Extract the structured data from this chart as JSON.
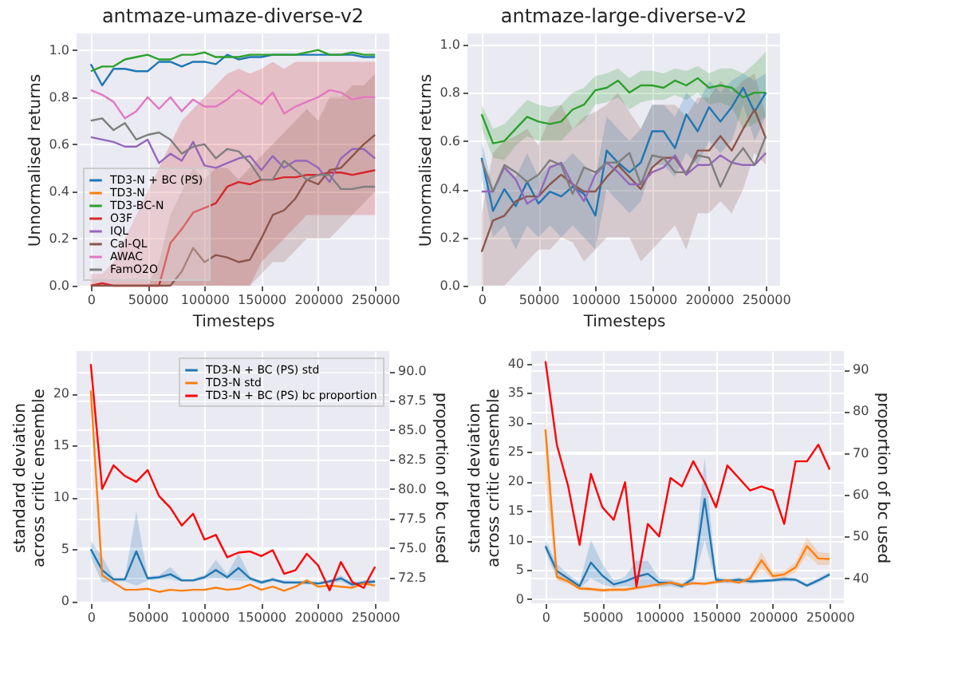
{
  "chart_data": [
    {
      "type": "line",
      "title": "antmaze-umaze-diverse-v2",
      "xlabel": "Timesteps",
      "ylabel": "Unnormalised returns",
      "grid": true,
      "legend": "bottom left",
      "x": [
        0,
        10000,
        20000,
        30000,
        40000,
        50000,
        60000,
        70000,
        80000,
        90000,
        100000,
        110000,
        120000,
        130000,
        140000,
        150000,
        160000,
        170000,
        180000,
        190000,
        200000,
        210000,
        220000,
        230000,
        240000,
        250000
      ],
      "xlim": [
        -12500,
        262500
      ],
      "xticks": [
        0,
        50000,
        100000,
        150000,
        200000,
        250000
      ],
      "ylim": [
        0,
        1.07
      ],
      "yticks": [
        {
          "value": 0,
          "label": "0.0"
        },
        {
          "value": 0.2,
          "label": "0.2"
        },
        {
          "value": 0.4,
          "label": "0.4"
        },
        {
          "value": 0.6,
          "label": "0.6"
        },
        {
          "value": 0.8,
          "label": "0.8"
        },
        {
          "value": 1,
          "label": "1.0"
        }
      ],
      "series": [
        {
          "name": "TD3-N + BC (PS)",
          "color": "#1f77b4",
          "values": [
            0.94,
            0.85,
            0.92,
            0.92,
            0.91,
            0.91,
            0.95,
            0.95,
            0.93,
            0.95,
            0.95,
            0.94,
            0.98,
            0.96,
            0.97,
            0.97,
            0.98,
            0.98,
            0.98,
            0.98,
            0.98,
            0.98,
            0.98,
            0.98,
            0.97,
            0.97
          ]
        },
        {
          "name": "TD3-N",
          "color": "#ff7f0e",
          "values": [
            null,
            null,
            null,
            null,
            null,
            null,
            null,
            null,
            null,
            null,
            null,
            null,
            null,
            null,
            null,
            null,
            null,
            null,
            null,
            null,
            null,
            null,
            null,
            null,
            null,
            null
          ]
        },
        {
          "name": "TD3-BC-N",
          "color": "#2ca02c",
          "values": [
            0.91,
            0.93,
            0.93,
            0.96,
            0.97,
            0.98,
            0.96,
            0.96,
            0.98,
            0.98,
            0.99,
            0.97,
            0.97,
            0.97,
            0.98,
            0.98,
            0.98,
            0.98,
            0.98,
            0.99,
            1.0,
            0.98,
            0.98,
            0.99,
            0.98,
            0.98
          ]
        },
        {
          "name": "O3F",
          "color": "#d62728",
          "values": [
            0.0,
            0.01,
            0.0,
            0.0,
            0.0,
            0.0,
            0.0,
            0.18,
            0.24,
            0.31,
            0.33,
            0.35,
            0.42,
            0.44,
            0.43,
            0.45,
            0.45,
            0.46,
            0.46,
            0.47,
            0.47,
            0.48,
            0.48,
            0.47,
            0.48,
            0.49
          ],
          "lower": [
            0,
            0,
            0,
            0,
            0,
            0,
            0,
            0,
            0,
            0,
            0,
            0,
            0,
            0,
            0,
            0.1,
            0.15,
            0.2,
            0.25,
            0.3,
            0.3,
            0.3,
            0.3,
            0.3,
            0.3,
            0.3
          ],
          "upper": [
            0.05,
            0.05,
            0.1,
            0.2,
            0.3,
            0.4,
            0.5,
            0.6,
            0.7,
            0.75,
            0.8,
            0.85,
            0.9,
            0.92,
            0.9,
            0.92,
            0.95,
            0.92,
            0.95,
            0.95,
            0.95,
            0.95,
            0.95,
            0.95,
            0.95,
            0.95
          ]
        },
        {
          "name": "IQL",
          "color": "#9467bd",
          "values": [
            0.63,
            0.62,
            0.61,
            0.59,
            0.59,
            0.62,
            0.52,
            0.56,
            0.53,
            0.61,
            0.51,
            0.5,
            0.52,
            0.54,
            0.55,
            0.49,
            0.55,
            0.5,
            0.53,
            0.53,
            0.5,
            0.44,
            0.54,
            0.58,
            0.58,
            0.54
          ]
        },
        {
          "name": "Cal-QL",
          "color": "#8c564b",
          "values": [
            0.0,
            0.0,
            0.0,
            0.0,
            0.0,
            0.0,
            0.0,
            0.0,
            0.06,
            0.16,
            0.1,
            0.13,
            0.12,
            0.1,
            0.11,
            0.2,
            0.3,
            0.32,
            0.37,
            0.45,
            0.43,
            0.49,
            0.5,
            0.55,
            0.6,
            0.64
          ],
          "lower": [
            0,
            0,
            0,
            0,
            0,
            0,
            0,
            0,
            0,
            0,
            0,
            0,
            0,
            0,
            0,
            0.05,
            0.1,
            0.1,
            0.15,
            0.2,
            0.2,
            0.2,
            0.25,
            0.3,
            0.35,
            0.4
          ],
          "upper": [
            0,
            0,
            0,
            0,
            0,
            0,
            0.1,
            0.3,
            0.4,
            0.5,
            0.45,
            0.5,
            0.5,
            0.45,
            0.5,
            0.55,
            0.6,
            0.65,
            0.7,
            0.75,
            0.7,
            0.8,
            0.8,
            0.85,
            0.85,
            0.9
          ]
        },
        {
          "name": "AWAC",
          "color": "#e377c2",
          "values": [
            0.83,
            0.81,
            0.78,
            0.71,
            0.74,
            0.8,
            0.75,
            0.8,
            0.74,
            0.79,
            0.76,
            0.76,
            0.79,
            0.83,
            0.8,
            0.77,
            0.82,
            0.73,
            0.76,
            0.78,
            0.8,
            0.83,
            0.82,
            0.79,
            0.8,
            0.8
          ]
        },
        {
          "name": "FamO2O",
          "color": "#7f7f7f",
          "values": [
            0.7,
            0.71,
            0.66,
            0.69,
            0.62,
            0.64,
            0.65,
            0.62,
            0.56,
            0.59,
            0.6,
            0.54,
            0.58,
            0.57,
            0.52,
            0.45,
            0.45,
            0.53,
            0.49,
            0.45,
            0.47,
            0.47,
            0.41,
            0.41,
            0.42,
            0.42
          ]
        }
      ]
    },
    {
      "type": "line",
      "title": "antmaze-large-diverse-v2",
      "xlabel": "Timesteps",
      "ylabel": "Unnormalised returns",
      "grid": true,
      "x": [
        0,
        10000,
        20000,
        30000,
        40000,
        50000,
        60000,
        70000,
        80000,
        90000,
        100000,
        110000,
        120000,
        130000,
        140000,
        150000,
        160000,
        170000,
        180000,
        190000,
        200000,
        210000,
        220000,
        230000,
        240000,
        250000
      ],
      "xlim": [
        -12500,
        262500
      ],
      "xticks": [
        0,
        50000,
        100000,
        150000,
        200000,
        250000
      ],
      "ylim": [
        0,
        1.045
      ],
      "yticks": [
        {
          "value": 0,
          "label": "0.0"
        },
        {
          "value": 0.2,
          "label": "0.2"
        },
        {
          "value": 0.4,
          "label": "0.4"
        },
        {
          "value": 0.6,
          "label": "0.6"
        },
        {
          "value": 0.8,
          "label": "0.8"
        },
        {
          "value": 1,
          "label": "1.0"
        }
      ],
      "series": [
        {
          "color": "#2ca02c",
          "values": [
            0.71,
            0.59,
            0.6,
            0.65,
            0.7,
            0.68,
            0.67,
            0.68,
            0.73,
            0.75,
            0.81,
            0.82,
            0.85,
            0.8,
            0.83,
            0.83,
            0.82,
            0.85,
            0.83,
            0.86,
            0.82,
            0.83,
            0.82,
            0.78,
            0.8,
            0.8
          ],
          "lower": [
            0.65,
            0.53,
            0.52,
            0.58,
            0.62,
            0.6,
            0.6,
            0.6,
            0.65,
            0.68,
            0.75,
            0.76,
            0.78,
            0.73,
            0.76,
            0.77,
            0.77,
            0.79,
            0.77,
            0.8,
            0.75,
            0.76,
            0.74,
            0.65,
            0.67,
            0.7
          ],
          "upper": [
            0.75,
            0.65,
            0.67,
            0.72,
            0.77,
            0.75,
            0.74,
            0.75,
            0.8,
            0.82,
            0.87,
            0.88,
            0.9,
            0.86,
            0.89,
            0.89,
            0.88,
            0.9,
            0.89,
            0.91,
            0.88,
            0.9,
            0.9,
            0.88,
            0.92,
            0.97
          ]
        },
        {
          "color": "#1f77b4",
          "values": [
            0.53,
            0.31,
            0.4,
            0.33,
            0.43,
            0.34,
            0.39,
            0.37,
            0.41,
            0.38,
            0.29,
            0.56,
            0.51,
            0.47,
            0.51,
            0.64,
            0.64,
            0.57,
            0.71,
            0.64,
            0.74,
            0.68,
            0.74,
            0.82,
            0.72,
            0.8
          ],
          "lower": [
            0.45,
            0.2,
            0.25,
            0.15,
            0.25,
            0.2,
            0.25,
            0.2,
            0.25,
            0.2,
            0.15,
            0.4,
            0.35,
            0.3,
            0.35,
            0.5,
            0.5,
            0.45,
            0.55,
            0.5,
            0.6,
            0.55,
            0.6,
            0.75,
            0.6,
            0.7
          ],
          "upper": [
            0.6,
            0.4,
            0.5,
            0.45,
            0.55,
            0.45,
            0.5,
            0.5,
            0.55,
            0.5,
            0.45,
            0.7,
            0.65,
            0.6,
            0.65,
            0.75,
            0.75,
            0.7,
            0.8,
            0.75,
            0.85,
            0.8,
            0.85,
            0.88,
            0.85,
            0.88
          ]
        },
        {
          "color": "#8c564b",
          "values": [
            0.14,
            0.27,
            0.29,
            0.35,
            0.37,
            0.37,
            0.42,
            0.46,
            0.42,
            0.39,
            0.39,
            0.45,
            0.5,
            0.45,
            0.4,
            0.49,
            0.53,
            0.53,
            0.46,
            0.56,
            0.56,
            0.62,
            0.56,
            0.65,
            0.73,
            0.61
          ],
          "lower": [
            0,
            0,
            0,
            0.05,
            0.1,
            0.15,
            0.15,
            0.2,
            0.18,
            0.1,
            0.15,
            0.2,
            0.2,
            0.2,
            0.1,
            0.15,
            0.2,
            0.25,
            0.15,
            0.3,
            0.3,
            0.35,
            0.3,
            0.4,
            0.55,
            0.5
          ],
          "upper": [
            0.3,
            0.55,
            0.6,
            0.62,
            0.65,
            0.58,
            0.7,
            0.75,
            0.65,
            0.7,
            0.72,
            0.75,
            0.8,
            0.72,
            0.65,
            0.75,
            0.75,
            0.75,
            0.7,
            0.78,
            0.78,
            0.85,
            0.8,
            0.85,
            0.88,
            0.7
          ]
        },
        {
          "color": "#9467bd",
          "values": [
            0.39,
            0.39,
            0.49,
            0.44,
            0.34,
            0.37,
            0.49,
            0.51,
            0.42,
            0.35,
            0.46,
            0.51,
            0.47,
            0.42,
            0.42,
            0.47,
            0.49,
            0.54,
            0.46,
            0.5,
            0.5,
            0.54,
            0.51,
            0.5,
            0.5,
            0.55
          ]
        },
        {
          "color": "#7f7f7f",
          "values": [
            0.52,
            0.39,
            0.5,
            0.47,
            0.43,
            0.46,
            0.52,
            0.5,
            0.38,
            0.49,
            0.47,
            0.51,
            0.51,
            0.55,
            0.42,
            0.54,
            0.53,
            0.47,
            0.47,
            0.54,
            0.53,
            0.41,
            0.51,
            0.57,
            0.5,
            0.62
          ]
        }
      ]
    },
    {
      "type": "line",
      "ylabel": "standard deviation across critic ensemble",
      "y2label": "proportion of bc used",
      "grid": true,
      "legend": "top right",
      "x": [
        0,
        10000,
        20000,
        30000,
        40000,
        50000,
        60000,
        70000,
        80000,
        90000,
        100000,
        110000,
        120000,
        130000,
        140000,
        150000,
        160000,
        170000,
        180000,
        190000,
        200000,
        210000,
        220000,
        230000,
        240000,
        250000
      ],
      "xlim": [
        -12500,
        262500
      ],
      "xticks": [
        0,
        50000,
        100000,
        150000,
        200000,
        250000
      ],
      "ylim": [
        -0.2,
        24.1
      ],
      "yticks": [
        0,
        5,
        10,
        15,
        20
      ],
      "y2lim": [
        70.3,
        91.7
      ],
      "y2ticks": [
        72.5,
        {
          "value": 75,
          "label": "75.0"
        },
        77.5,
        {
          "value": 80,
          "label": "80.0"
        },
        82.5,
        {
          "value": 85,
          "label": "85.0"
        },
        87.5,
        {
          "value": 90,
          "label": "90.0"
        }
      ],
      "series": [
        {
          "name": "TD3-N + BC (PS) std",
          "color": "#1f77b4",
          "values": [
            5.0,
            3.0,
            2.1,
            2.1,
            4.8,
            2.2,
            2.3,
            2.6,
            2.0,
            2.0,
            2.3,
            3.0,
            2.3,
            3.2,
            2.2,
            1.8,
            2.1,
            1.8,
            1.8,
            1.8,
            1.7,
            1.9,
            2.2,
            1.6,
            1.8,
            1.9
          ],
          "lower": [
            4.2,
            1.8,
            1.9,
            1.9,
            1.5,
            2.0,
            2.1,
            2.1,
            1.9,
            1.9,
            2.1,
            2.2,
            2.1,
            2.0,
            2.0,
            1.6,
            1.9,
            1.7,
            1.7,
            1.6,
            1.6,
            1.7,
            1.9,
            1.4,
            1.6,
            1.7
          ],
          "upper": [
            5.8,
            4.3,
            2.3,
            2.3,
            8.6,
            2.4,
            2.5,
            3.3,
            2.2,
            2.2,
            2.5,
            4.0,
            2.6,
            4.6,
            2.4,
            2.0,
            2.3,
            2.0,
            1.9,
            2.0,
            1.8,
            2.1,
            2.5,
            1.8,
            2.0,
            2.1
          ]
        },
        {
          "name": "TD3-N std",
          "color": "#ff7f0e",
          "values": [
            20.3,
            2.5,
            1.8,
            1.1,
            1.1,
            1.2,
            0.9,
            1.1,
            1.0,
            1.1,
            1.1,
            1.3,
            1.1,
            1.2,
            1.6,
            1.1,
            1.4,
            1.0,
            1.4,
            2.0,
            1.4,
            1.5,
            1.4,
            1.3,
            1.7,
            1.5
          ]
        },
        {
          "name": "TD3-N + BC (PS) bc proportion",
          "color": "#ff0000",
          "axis": "y2",
          "values": [
            90.6,
            80.0,
            82.0,
            81.1,
            80.6,
            81.6,
            79.4,
            78.4,
            76.9,
            77.9,
            75.7,
            76.1,
            74.2,
            74.6,
            74.7,
            74.3,
            74.8,
            72.8,
            73.1,
            74.5,
            73.5,
            71.4,
            73.8,
            72.1,
            71.6,
            73.4
          ]
        }
      ]
    },
    {
      "type": "line",
      "ylabel": "standard deviation across critic ensemble",
      "y2label": "proportion of bc used",
      "grid": true,
      "x": [
        0,
        10000,
        20000,
        30000,
        40000,
        50000,
        60000,
        70000,
        80000,
        90000,
        100000,
        110000,
        120000,
        130000,
        140000,
        150000,
        160000,
        170000,
        180000,
        190000,
        200000,
        210000,
        220000,
        230000,
        240000,
        250000
      ],
      "xlim": [
        -12500,
        262500
      ],
      "xticks": [
        0,
        50000,
        100000,
        150000,
        200000,
        250000
      ],
      "ylim": [
        -0.7,
        42.1
      ],
      "yticks": [
        0,
        5,
        10,
        15,
        20,
        25,
        30,
        35,
        40
      ],
      "y2lim": [
        34,
        94.4
      ],
      "y2ticks": [
        40,
        50,
        60,
        70,
        80,
        90
      ],
      "series": [
        {
          "color": "#1f77b4",
          "values": [
            9.0,
            4.8,
            3.5,
            2.2,
            6.2,
            4.0,
            2.5,
            3.0,
            3.8,
            4.3,
            2.8,
            2.8,
            2.2,
            3.5,
            17.0,
            3.3,
            3.1,
            3.3,
            3.0,
            3.1,
            3.2,
            3.4,
            3.3,
            2.3,
            3.2,
            4.2
          ],
          "lower": [
            8,
            3.5,
            2.8,
            1.8,
            3.5,
            2.5,
            2.0,
            2.2,
            2.0,
            2.5,
            2.0,
            2.2,
            1.8,
            2.8,
            10,
            2.8,
            2.7,
            2.9,
            2.6,
            2.8,
            2.9,
            3.0,
            3.0,
            2.0,
            2.8,
            3.8
          ],
          "upper": [
            10,
            6,
            4.2,
            2.8,
            10,
            6,
            3.2,
            3.8,
            6.5,
            6.5,
            3.5,
            3.3,
            2.6,
            4.2,
            24,
            3.8,
            3.5,
            3.7,
            3.4,
            3.4,
            3.5,
            3.8,
            3.6,
            2.6,
            3.6,
            4.6
          ]
        },
        {
          "color": "#ff7f0e",
          "values": [
            28.8,
            3.8,
            3.0,
            1.8,
            1.7,
            1.5,
            1.6,
            1.6,
            1.9,
            2.2,
            2.5,
            2.8,
            2.4,
            2.7,
            2.6,
            2.9,
            3.2,
            2.8,
            3.5,
            6.6,
            3.9,
            4.2,
            5.4,
            9.0,
            6.9,
            6.8
          ],
          "lower": [
            20,
            3.2,
            2.6,
            1.5,
            1.4,
            1.2,
            1.3,
            1.3,
            1.6,
            1.9,
            2.2,
            2.5,
            2.1,
            2.4,
            2.3,
            2.6,
            2.9,
            2.5,
            3.0,
            5.2,
            3.3,
            3.6,
            4.6,
            7.5,
            5.8,
            5.8
          ],
          "upper": [
            32,
            4.4,
            3.4,
            2.2,
            2.0,
            1.8,
            1.9,
            1.9,
            2.2,
            2.5,
            2.8,
            3.1,
            2.7,
            3.0,
            2.9,
            3.2,
            3.5,
            3.1,
            4.0,
            8.0,
            4.5,
            4.8,
            6.2,
            10.5,
            8.0,
            7.8
          ]
        },
        {
          "color": "#ff0000",
          "axis": "y2",
          "values": [
            92,
            72,
            62,
            48,
            65,
            57,
            54,
            63,
            38,
            53,
            50,
            64,
            62,
            68,
            63,
            57,
            67,
            64,
            61,
            62,
            61,
            53,
            68,
            68,
            72,
            66
          ]
        }
      ]
    }
  ]
}
